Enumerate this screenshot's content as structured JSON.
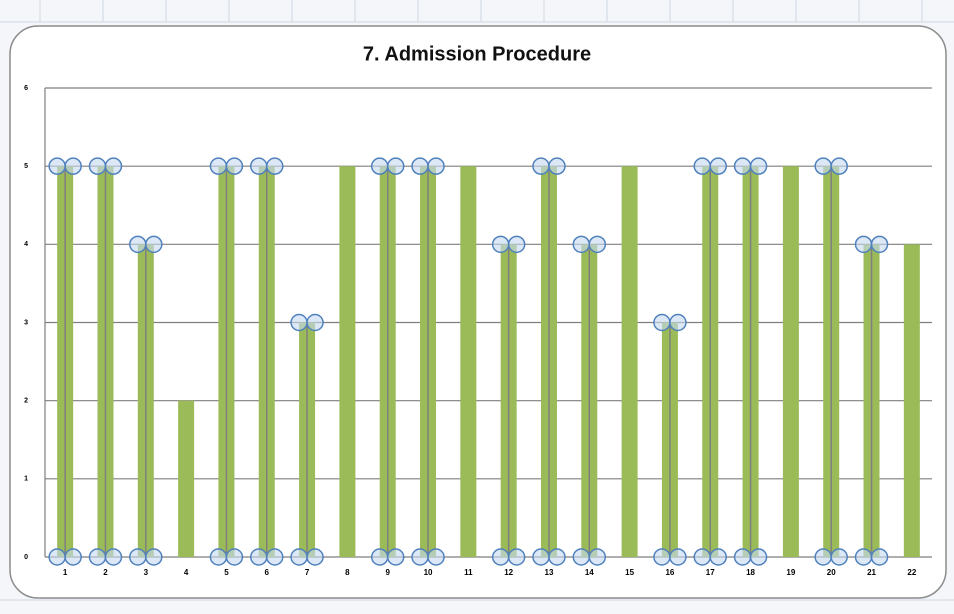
{
  "chart_data": {
    "type": "bar",
    "title": "7. Admission Procedure",
    "categories": [
      "1",
      "2",
      "3",
      "4",
      "5",
      "6",
      "7",
      "8",
      "9",
      "10",
      "11",
      "12",
      "13",
      "14",
      "15",
      "16",
      "17",
      "18",
      "19",
      "20",
      "21",
      "22"
    ],
    "series": [
      {
        "color": "#9bbb59",
        "values": [
          5,
          5,
          4,
          2,
          5,
          5,
          3,
          5,
          5,
          5,
          5,
          4,
          5,
          4,
          5,
          3,
          5,
          5,
          5,
          5,
          4,
          4
        ]
      },
      {
        "type": "marker",
        "color": "#4f81bd",
        "values": [
          5,
          5,
          4,
          null,
          5,
          5,
          3,
          null,
          5,
          5,
          null,
          4,
          5,
          4,
          null,
          3,
          5,
          5,
          null,
          5,
          4,
          null
        ]
      },
      {
        "type": "marker",
        "color": "#4f81bd",
        "values": [
          0,
          0,
          0,
          null,
          0,
          0,
          0,
          null,
          0,
          0,
          null,
          0,
          0,
          0,
          null,
          0,
          0,
          0,
          null,
          0,
          0,
          null
        ]
      }
    ],
    "ylim": [
      0,
      6
    ],
    "yticks": [
      0,
      1,
      2,
      3,
      4,
      5,
      6
    ],
    "grid": true
  }
}
